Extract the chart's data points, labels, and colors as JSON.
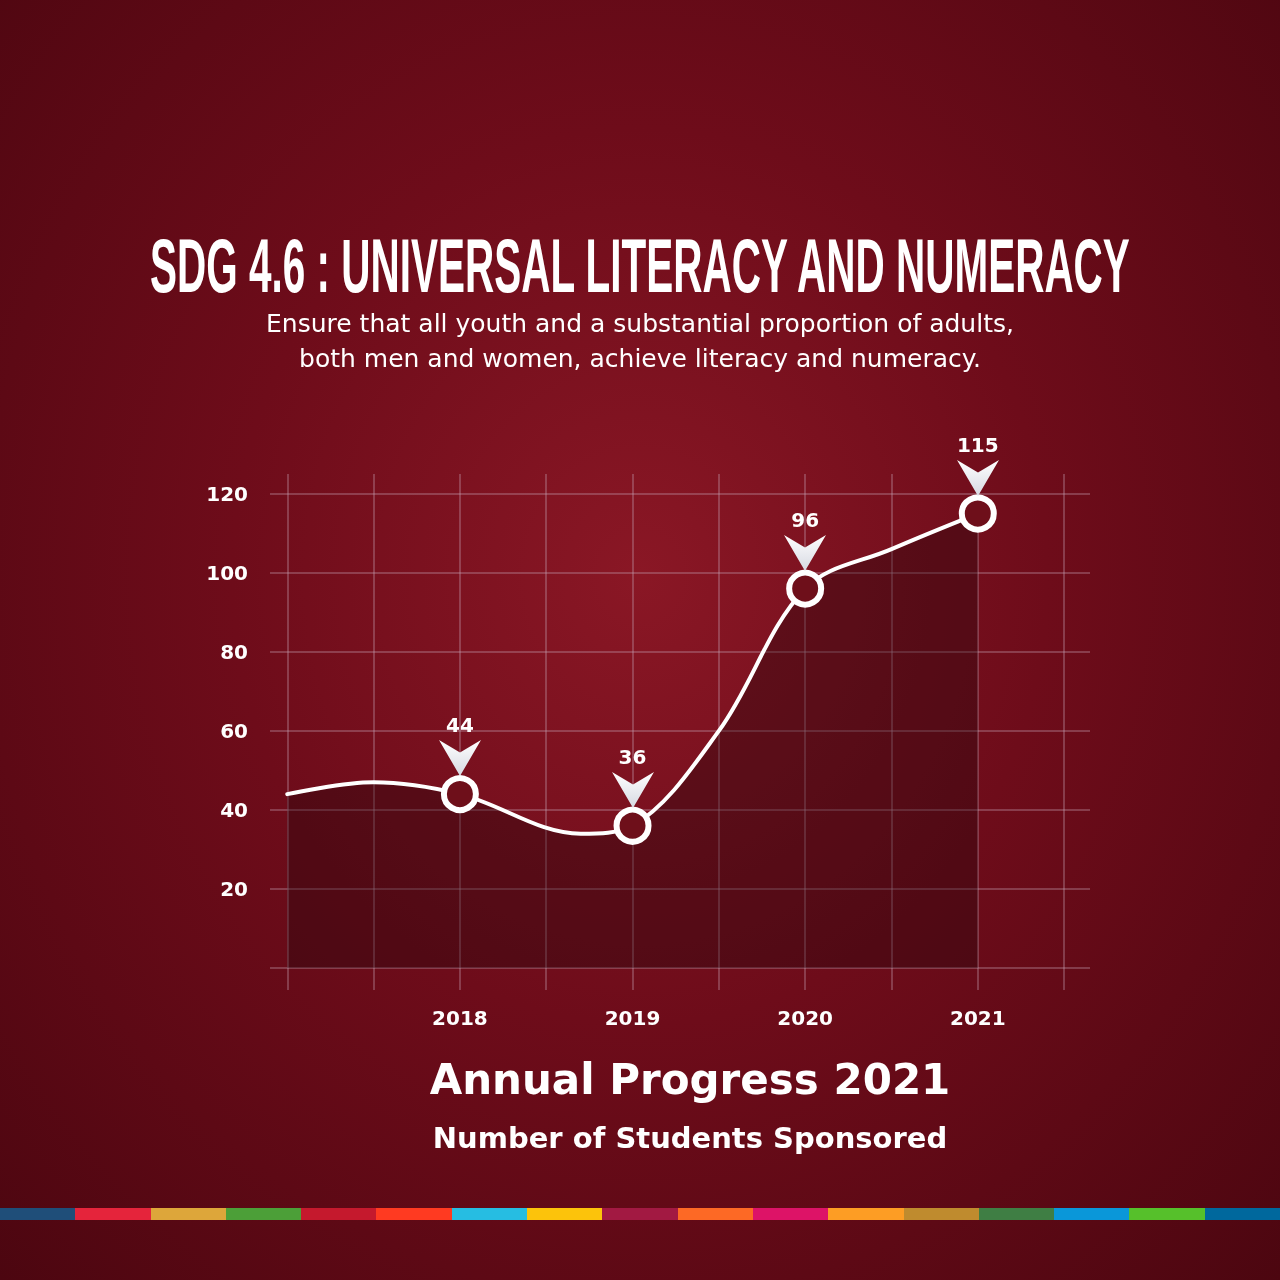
{
  "chart_data": {
    "type": "area",
    "title": "SDG 4.6 : UNIVERSAL LITERACY AND NUMERACY",
    "subtitle": "Ensure that all youth and a substantial proportion of adults,\nboth men and women, achieve literacy and numeracy.",
    "annotations": [
      "Annual Progress 2021",
      "Number of Students Sponsored"
    ],
    "xlim": [
      2016.9,
      2021.65
    ],
    "xticks": [
      {
        "value": 2017,
        "label": null
      },
      {
        "value": 2017.5,
        "label": null
      },
      2018,
      {
        "value": 2018.5,
        "label": null
      },
      2019,
      {
        "value": 2019.5,
        "label": null
      },
      2020,
      {
        "value": 2020.5,
        "label": null
      },
      2021,
      {
        "value": 2021.5,
        "label": null
      }
    ],
    "ylim": [
      0,
      125
    ],
    "yticks": [
      {
        "value": 0,
        "label": null
      },
      20,
      40,
      60,
      80,
      100,
      120
    ],
    "grid": true,
    "line_style": "solid",
    "series": [
      {
        "color": "#ffffff",
        "marker": "none",
        "x": [
          2017,
          2017.5,
          2018,
          2018.7,
          2019,
          2019.5,
          2020,
          2020.5,
          2021
        ],
        "values": [
          44,
          47,
          44,
          34,
          36,
          60,
          96,
          106,
          115
        ]
      },
      {
        "type": "scatter",
        "color": "#ffffff",
        "marker": "circle",
        "x": [
          2018,
          2019,
          2020,
          2021
        ],
        "values": [
          44,
          36,
          96,
          115
        ],
        "value_labels": [
          "44",
          "36",
          "96",
          "115"
        ]
      }
    ]
  }
}
